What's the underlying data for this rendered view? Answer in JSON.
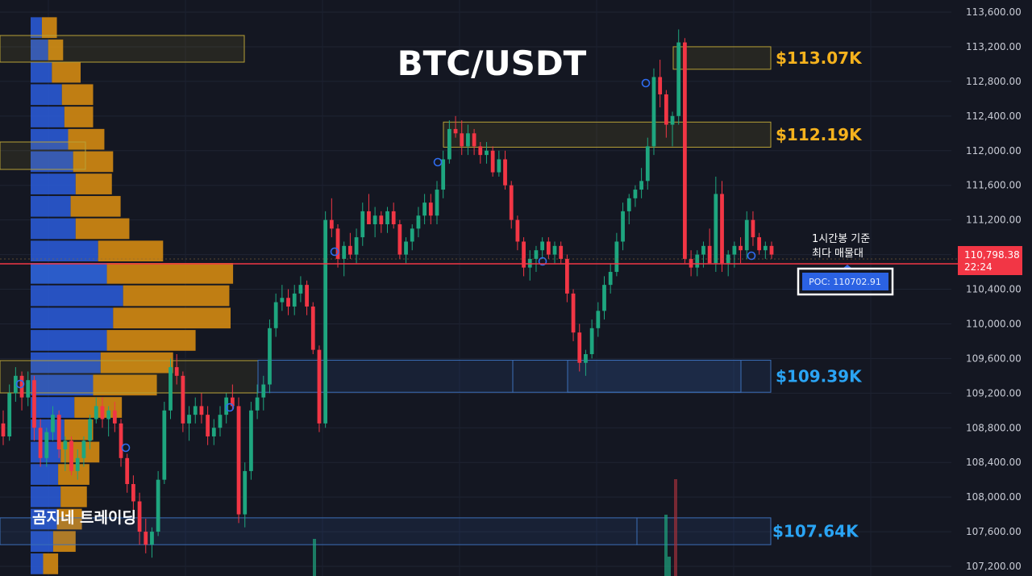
{
  "chart_data": {
    "type": "candlestick",
    "title": "BTC/USDT",
    "watermark": "곰지네 트레이딩",
    "ylim": [
      107050,
      113750
    ],
    "y_ticks": [
      "113,600.00",
      "113,200.00",
      "112,800.00",
      "112,400.00",
      "112,000.00",
      "111,600.00",
      "111,200.00",
      "110,800.00",
      "110,400.00",
      "110,000.00",
      "109,600.00",
      "109,200.00",
      "108,800.00",
      "108,400.00",
      "108,000.00",
      "107,600.00",
      "107,200.00"
    ],
    "y_tick_values": [
      113600,
      113200,
      112800,
      112400,
      112000,
      111600,
      111200,
      110800,
      110400,
      110000,
      109600,
      109200,
      108800,
      108400,
      108000,
      107600,
      107200
    ],
    "last_price": {
      "value": 110798.38,
      "label": "110,798.38",
      "countdown": "22:24"
    },
    "poc": {
      "value": 110702.91,
      "label": "POC: 110702.91",
      "note_line1": "1시간봉 기준",
      "note_line2": "최다 매물대"
    },
    "resistance_zones": [
      {
        "label": "$113.07K",
        "low": 112940,
        "high": 113200
      },
      {
        "label": "$112.19K",
        "low": 112040,
        "high": 112330
      }
    ],
    "support_zones": [
      {
        "label": "$109.39K",
        "low": 109210,
        "high": 109580
      },
      {
        "label": "$107.64K",
        "low": 107450,
        "high": 107760
      }
    ],
    "candles": [
      [
        108850,
        109000,
        108600,
        108700
      ],
      [
        108700,
        109300,
        108650,
        109200
      ],
      [
        109200,
        109500,
        109100,
        109400
      ],
      [
        109400,
        109450,
        109000,
        109150
      ],
      [
        109150,
        109450,
        109050,
        109350
      ],
      [
        109350,
        109400,
        108650,
        108800
      ],
      [
        108800,
        108900,
        108350,
        108450
      ],
      [
        108450,
        108800,
        108350,
        108750
      ],
      [
        108750,
        109050,
        108650,
        108950
      ],
      [
        108950,
        109000,
        108450,
        108550
      ],
      [
        108550,
        108700,
        108300,
        108650
      ],
      [
        108650,
        108700,
        108250,
        108300
      ],
      [
        108300,
        108550,
        108200,
        108450
      ],
      [
        108450,
        108700,
        108350,
        108650
      ],
      [
        108650,
        108950,
        108550,
        108900
      ],
      [
        108900,
        109150,
        108850,
        109050
      ],
      [
        109050,
        109150,
        108800,
        108900
      ],
      [
        108900,
        109050,
        108700,
        109000
      ],
      [
        109000,
        109100,
        108750,
        108850
      ],
      [
        108850,
        108900,
        108350,
        108450
      ],
      [
        108450,
        108500,
        108050,
        108150
      ],
      [
        108150,
        108250,
        107800,
        107950
      ],
      [
        107950,
        108050,
        107450,
        107600
      ],
      [
        107600,
        107750,
        107350,
        107450
      ],
      [
        107450,
        107650,
        107300,
        107600
      ],
      [
        107600,
        108300,
        107550,
        108200
      ],
      [
        108200,
        109100,
        108150,
        109000
      ],
      [
        109000,
        109600,
        108900,
        109500
      ],
      [
        109500,
        109650,
        109300,
        109400
      ],
      [
        109400,
        109450,
        108750,
        108850
      ],
      [
        108850,
        109050,
        108650,
        108950
      ],
      [
        108950,
        109150,
        108850,
        109050
      ],
      [
        109050,
        109200,
        108850,
        108950
      ],
      [
        108950,
        109050,
        108600,
        108700
      ],
      [
        108700,
        108900,
        108600,
        108800
      ],
      [
        108800,
        109050,
        108700,
        108950
      ],
      [
        108950,
        109200,
        108850,
        109150
      ],
      [
        109150,
        109300,
        109000,
        109050
      ],
      [
        109050,
        109150,
        107700,
        107800
      ],
      [
        107800,
        108400,
        107650,
        108300
      ],
      [
        108300,
        109100,
        108200,
        109000
      ],
      [
        109000,
        109300,
        108900,
        109150
      ],
      [
        109150,
        109400,
        109000,
        109300
      ],
      [
        109300,
        110050,
        109200,
        109950
      ],
      [
        109950,
        110350,
        109850,
        110250
      ],
      [
        110250,
        110450,
        110150,
        110300
      ],
      [
        110300,
        110400,
        110100,
        110200
      ],
      [
        110200,
        110450,
        110100,
        110350
      ],
      [
        110350,
        110550,
        110250,
        110450
      ],
      [
        110450,
        110500,
        110100,
        110200
      ],
      [
        110200,
        110250,
        109650,
        109700
      ],
      [
        109700,
        109750,
        108750,
        108850
      ],
      [
        108850,
        111300,
        108800,
        111200
      ],
      [
        111200,
        111450,
        111000,
        111100
      ],
      [
        111100,
        111150,
        110650,
        110750
      ],
      [
        110750,
        110950,
        110550,
        110900
      ],
      [
        110900,
        111050,
        110750,
        110800
      ],
      [
        110800,
        111100,
        110700,
        111000
      ],
      [
        111000,
        111400,
        110900,
        111300
      ],
      [
        111300,
        111500,
        111200,
        111150
      ],
      [
        111150,
        111350,
        111000,
        111250
      ],
      [
        111250,
        111300,
        111050,
        111150
      ],
      [
        111150,
        111350,
        111050,
        111300
      ],
      [
        111300,
        111400,
        111100,
        111150
      ],
      [
        111150,
        111200,
        110750,
        110800
      ],
      [
        110800,
        111000,
        110700,
        110950
      ],
      [
        110950,
        111150,
        110850,
        111100
      ],
      [
        111100,
        111350,
        111000,
        111250
      ],
      [
        111250,
        111500,
        111150,
        111400
      ],
      [
        111400,
        111500,
        111150,
        111250
      ],
      [
        111250,
        111650,
        111150,
        111550
      ],
      [
        111550,
        112000,
        111450,
        111900
      ],
      [
        111900,
        112350,
        111850,
        112250
      ],
      [
        112250,
        112400,
        112150,
        112200
      ],
      [
        112200,
        112350,
        111950,
        112050
      ],
      [
        112050,
        112300,
        111950,
        112200
      ],
      [
        112200,
        112250,
        111950,
        112050
      ],
      [
        112050,
        112100,
        111850,
        111950
      ],
      [
        111950,
        112100,
        111850,
        112000
      ],
      [
        112000,
        112050,
        111700,
        111750
      ],
      [
        111750,
        112000,
        111700,
        111900
      ],
      [
        111900,
        112000,
        111550,
        111600
      ],
      [
        111600,
        111650,
        111100,
        111200
      ],
      [
        111200,
        111250,
        110850,
        110950
      ],
      [
        110950,
        111000,
        110550,
        110650
      ],
      [
        110650,
        110850,
        110500,
        110750
      ],
      [
        110750,
        110900,
        110600,
        110850
      ],
      [
        110850,
        111000,
        110750,
        110950
      ],
      [
        110950,
        111000,
        110750,
        110800
      ],
      [
        110800,
        110950,
        110700,
        110900
      ],
      [
        110900,
        110950,
        110700,
        110750
      ],
      [
        110750,
        110800,
        110250,
        110350
      ],
      [
        110350,
        110400,
        109800,
        109900
      ],
      [
        109900,
        110000,
        109450,
        109550
      ],
      [
        109550,
        109700,
        109400,
        109650
      ],
      [
        109650,
        110050,
        109600,
        109950
      ],
      [
        109950,
        110250,
        109850,
        110150
      ],
      [
        110150,
        110550,
        110050,
        110450
      ],
      [
        110450,
        110700,
        110350,
        110600
      ],
      [
        110600,
        111050,
        110550,
        110950
      ],
      [
        110950,
        111400,
        110850,
        111300
      ],
      [
        111300,
        111500,
        111150,
        111450
      ],
      [
        111450,
        111600,
        111350,
        111550
      ],
      [
        111550,
        111800,
        111450,
        111650
      ],
      [
        111650,
        112150,
        111550,
        112050
      ],
      [
        112050,
        112950,
        111950,
        112850
      ],
      [
        112850,
        113050,
        112500,
        112650
      ],
      [
        112650,
        112700,
        112150,
        112300
      ],
      [
        112300,
        112450,
        112050,
        112400
      ],
      [
        112400,
        113400,
        112300,
        113250
      ],
      [
        113250,
        113300,
        110700,
        110750
      ],
      [
        110750,
        110850,
        110550,
        110650
      ],
      [
        110650,
        110850,
        110550,
        110800
      ],
      [
        110800,
        110950,
        110650,
        110900
      ],
      [
        110900,
        111100,
        110750,
        110700
      ],
      [
        110700,
        111700,
        110600,
        111500
      ],
      [
        111500,
        111650,
        110600,
        110700
      ],
      [
        110700,
        110850,
        110550,
        110800
      ],
      [
        110800,
        110950,
        110650,
        110900
      ],
      [
        110900,
        111000,
        110700,
        110850
      ],
      [
        110850,
        111300,
        110750,
        111200
      ],
      [
        111200,
        111300,
        110900,
        111000
      ],
      [
        111000,
        111050,
        110800,
        110850
      ],
      [
        110850,
        110950,
        110750,
        110900
      ],
      [
        110900,
        110950,
        110750,
        110800
      ]
    ],
    "volume_profile": {
      "price_low": 107100,
      "price_high": 113550,
      "rows": [
        [
          10,
          12
        ],
        [
          18,
          18
        ],
        [
          21,
          20
        ],
        [
          24,
          21
        ],
        [
          22,
          25
        ],
        [
          24,
          31
        ],
        [
          27,
          23
        ],
        [
          35,
          38
        ],
        [
          50,
          51
        ],
        [
          56,
          58
        ],
        [
          61,
          71
        ],
        [
          66,
          94
        ],
        [
          74,
          85
        ],
        [
          61,
          101
        ],
        [
          54,
          52
        ],
        [
          36,
          43
        ],
        [
          32,
          40
        ],
        [
          36,
          29
        ],
        [
          34,
          32
        ],
        [
          30,
          29
        ],
        [
          27,
          23
        ],
        [
          25,
          25
        ],
        [
          17,
          23
        ],
        [
          14,
          12
        ],
        [
          9,
          12
        ]
      ]
    }
  }
}
